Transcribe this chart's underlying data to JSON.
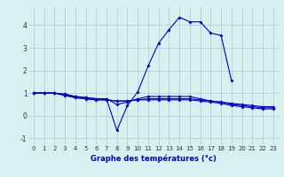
{
  "x": [
    0,
    1,
    2,
    3,
    4,
    5,
    6,
    7,
    8,
    9,
    10,
    11,
    12,
    13,
    14,
    15,
    16,
    17,
    18,
    19,
    20,
    21,
    22,
    23
  ],
  "line1": [
    1.0,
    1.0,
    1.0,
    0.95,
    0.85,
    0.8,
    0.75,
    0.75,
    -0.65,
    0.45,
    1.05,
    2.2,
    3.2,
    3.8,
    4.35,
    4.15,
    4.15,
    3.65,
    3.55,
    1.55,
    null,
    null,
    null,
    null
  ],
  "line2": [
    1.0,
    1.0,
    1.0,
    0.95,
    0.85,
    0.8,
    0.75,
    0.75,
    0.5,
    0.6,
    0.75,
    0.85,
    0.85,
    0.85,
    0.85,
    0.85,
    0.75,
    0.65,
    0.6,
    0.55,
    0.5,
    0.45,
    0.4,
    0.4
  ],
  "line3": [
    1.0,
    1.0,
    1.0,
    0.9,
    0.8,
    0.75,
    0.7,
    0.7,
    0.65,
    0.65,
    0.7,
    0.75,
    0.75,
    0.75,
    0.75,
    0.75,
    0.7,
    0.65,
    0.6,
    0.5,
    0.45,
    0.4,
    0.35,
    0.35
  ],
  "line4": [
    1.0,
    1.0,
    1.0,
    0.9,
    0.8,
    0.75,
    0.7,
    0.7,
    0.65,
    0.65,
    0.7,
    0.7,
    0.7,
    0.7,
    0.7,
    0.7,
    0.65,
    0.6,
    0.55,
    0.45,
    0.4,
    0.35,
    0.3,
    0.3
  ],
  "line_color": "#0000cc",
  "bg_color": "#d8f0f0",
  "grid_color": "#b0c8c8",
  "xlabel": "Graphe des températures (°c)",
  "xlim": [
    -0.5,
    23.5
  ],
  "ylim": [
    -1.3,
    4.8
  ],
  "yticks": [
    -1,
    0,
    1,
    2,
    3,
    4
  ],
  "xticks": [
    0,
    1,
    2,
    3,
    4,
    5,
    6,
    7,
    8,
    9,
    10,
    11,
    12,
    13,
    14,
    15,
    16,
    17,
    18,
    19,
    20,
    21,
    22,
    23
  ],
  "marker": "D",
  "markersize": 2.0,
  "linewidth": 0.8,
  "tick_fontsize": 5.0,
  "xlabel_fontsize": 6.0
}
